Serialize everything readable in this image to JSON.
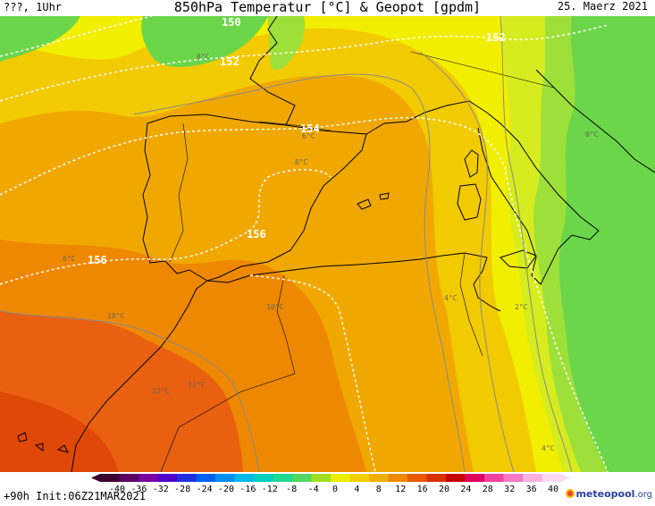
{
  "header": {
    "left": "???, 1Uhr",
    "title": "850hPa Temperatur [°C] & Geopot [gpdm]",
    "date": "25. Maerz 2021"
  },
  "footer": {
    "run_info": "+90h Init:06Z21MAR2021",
    "logo_text": "meteopool",
    "logo_suffix": ".org",
    "logo_icon": "meteopool-logo-icon"
  },
  "colorbar": {
    "ticks": [
      "-40",
      "-36",
      "-32",
      "-28",
      "-24",
      "-20",
      "-16",
      "-12",
      "-8",
      "-4",
      "0",
      "4",
      "8",
      "12",
      "16",
      "20",
      "24",
      "28",
      "32",
      "36",
      "40"
    ],
    "colors": [
      "#3a0030",
      "#5a0060",
      "#7a00a0",
      "#5000c8",
      "#2030e0",
      "#0060f0",
      "#0090f0",
      "#00b8e8",
      "#00d0c0",
      "#20d890",
      "#50d860",
      "#a0e020",
      "#e8f000",
      "#f0d000",
      "#f0b000",
      "#f08800",
      "#e85800",
      "#d83000",
      "#c80000",
      "#e00060",
      "#f040a0",
      "#f878c8",
      "#fcb0e0",
      "#fed8f0"
    ]
  },
  "geopotential_labels": [
    {
      "text": "150",
      "icon": "contour-label"
    },
    {
      "text": "152",
      "icon": "contour-label"
    },
    {
      "text": "152",
      "icon": "contour-label"
    },
    {
      "text": "154",
      "icon": "contour-label"
    },
    {
      "text": "156",
      "icon": "contour-label"
    },
    {
      "text": "156",
      "icon": "contour-label"
    }
  ],
  "temperature_labels": [
    "0°C",
    "0°C",
    "6°C",
    "8°C",
    "6°C",
    "10°C",
    "10°C",
    "4°C",
    "2°C",
    "12°C",
    "12°C",
    "4°C"
  ],
  "colors": {
    "green": "#6cd64a",
    "light_green": "#9ee03a",
    "yellow_green": "#d6ec1e",
    "yellow": "#f2ee00",
    "light_orange": "#f2ca00",
    "orange": "#f0a800",
    "dark_orange": "#ee8800",
    "red_orange": "#e86010"
  }
}
